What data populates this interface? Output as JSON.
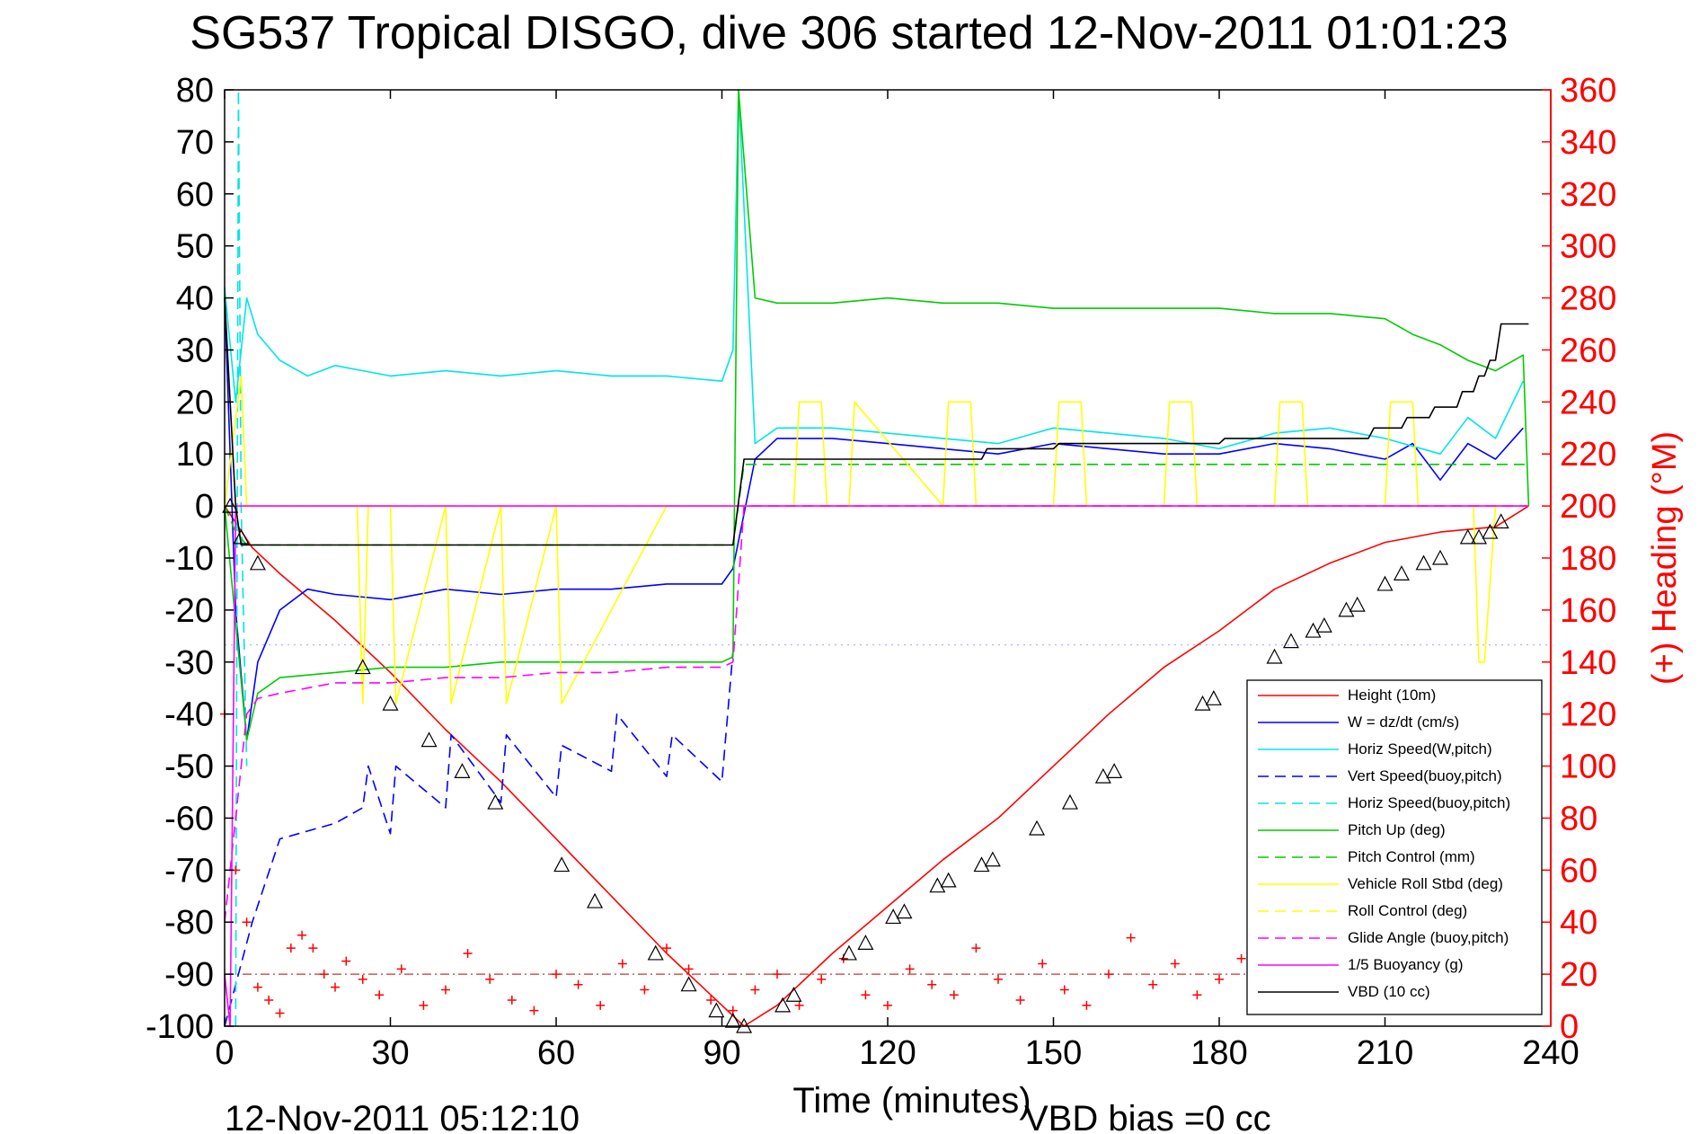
{
  "chart_data": {
    "type": "line",
    "title": "SG537 Tropical DISGO, dive 306 started 12-Nov-2011 01:01:23",
    "xlabel": "Time (minutes)",
    "ylabel": "",
    "ylabel_right": "(+) Heading (°M)",
    "footer_left": "12-Nov-2011 05:12:10",
    "footer_right": "VBD bias =0 cc",
    "xlim": [
      0,
      240
    ],
    "ylim": [
      -100,
      80
    ],
    "ylim_right": [
      0,
      360
    ],
    "xticks": [
      "0",
      "30",
      "60",
      "90",
      "120",
      "150",
      "180",
      "210",
      "240"
    ],
    "yticks": [
      "80",
      "70",
      "60",
      "50",
      "40",
      "30",
      "20",
      "10",
      "0",
      "-10",
      "-20",
      "-30",
      "-40",
      "-50",
      "-60",
      "-70",
      "-80",
      "-90",
      "-100"
    ],
    "yticks_right": [
      "360",
      "340",
      "320",
      "300",
      "280",
      "260",
      "240",
      "220",
      "200",
      "180",
      "160",
      "140",
      "120",
      "100",
      "80",
      "60",
      "40",
      "20",
      "0"
    ],
    "ref_lines": [
      {
        "y": -26.7,
        "color": "#aaaaff",
        "style": "dotted"
      },
      {
        "y": -90,
        "color": "#cc3333",
        "style": "dashdot"
      }
    ],
    "legend_position": "lower-right",
    "series": [
      {
        "name": "Height (10m)",
        "color": "#ff0000",
        "style": "solid",
        "x": [
          0,
          5,
          10,
          20,
          30,
          40,
          50,
          60,
          70,
          80,
          90,
          94,
          100,
          110,
          120,
          130,
          140,
          150,
          160,
          170,
          180,
          190,
          200,
          210,
          220,
          230,
          236
        ],
        "y": [
          0,
          -8,
          -13,
          -22,
          -32,
          -43,
          -53,
          -64,
          -75,
          -86,
          -96,
          -100,
          -96,
          -86,
          -77,
          -68,
          -60,
          -50,
          -40,
          -31,
          -24,
          -16,
          -11,
          -7,
          -5,
          -4,
          0
        ]
      },
      {
        "name": "W = dz/dt (cm/s)",
        "color": "#0000ff",
        "style": "solid",
        "x": [
          0,
          2,
          4,
          6,
          10,
          15,
          20,
          30,
          40,
          50,
          60,
          70,
          80,
          90,
          92,
          96,
          100,
          110,
          120,
          130,
          140,
          150,
          160,
          170,
          180,
          190,
          200,
          210,
          215,
          220,
          225,
          230,
          235
        ],
        "y": [
          40,
          -20,
          -45,
          -30,
          -20,
          -16,
          -17,
          -18,
          -16,
          -17,
          -16,
          -16,
          -15,
          -15,
          -12,
          9,
          13,
          13,
          12,
          11,
          10,
          12,
          11,
          10,
          10,
          12,
          11,
          9,
          12,
          5,
          12,
          9,
          15
        ]
      },
      {
        "name": "Horiz Speed(W,pitch)",
        "color": "#00e5e5",
        "style": "solid",
        "x": [
          0,
          2,
          4,
          6,
          10,
          15,
          20,
          30,
          40,
          50,
          60,
          70,
          80,
          90,
          92,
          93,
          96,
          100,
          110,
          120,
          130,
          140,
          150,
          160,
          170,
          180,
          190,
          200,
          210,
          220,
          225,
          230,
          235
        ],
        "y": [
          42,
          20,
          40,
          33,
          28,
          25,
          27,
          25,
          26,
          25,
          26,
          25,
          25,
          24,
          30,
          80,
          12,
          15,
          15,
          14,
          13,
          12,
          15,
          14,
          13,
          11,
          14,
          15,
          13,
          10,
          17,
          13,
          24
        ]
      },
      {
        "name": "Vert Speed(buoy,pitch)",
        "color": "#0000ff",
        "style": "dashed",
        "x": [
          0,
          5,
          10,
          20,
          25,
          26,
          30,
          31,
          40,
          41,
          50,
          51,
          60,
          61,
          70,
          71,
          80,
          81,
          90,
          92
        ],
        "y": [
          -100,
          -80,
          -64,
          -61,
          -58,
          -50,
          -63,
          -50,
          -58,
          -44,
          -57,
          -44,
          -56,
          -46,
          -51,
          -40,
          -52,
          -44,
          -53,
          -28
        ]
      },
      {
        "name": "Horiz Speed(buoy,pitch)",
        "color": "#00e5e5",
        "style": "dashed",
        "x": [
          2,
          2.5,
          3,
          4
        ],
        "y": [
          -100,
          80,
          0,
          -50
        ]
      },
      {
        "name": "Pitch Up (deg)",
        "color": "#00cc00",
        "style": "solid",
        "x": [
          0,
          4,
          6,
          10,
          20,
          30,
          40,
          50,
          60,
          70,
          80,
          90,
          92,
          93,
          96,
          100,
          110,
          120,
          130,
          140,
          150,
          160,
          170,
          180,
          190,
          200,
          210,
          215,
          220,
          225,
          230,
          235,
          236
        ],
        "y": [
          0,
          -45,
          -36,
          -33,
          -32,
          -31,
          -31,
          -30,
          -30,
          -30,
          -30,
          -30,
          -29,
          80,
          40,
          39,
          39,
          40,
          39,
          39,
          38,
          38,
          38,
          38,
          37,
          37,
          36,
          33,
          31,
          28,
          26,
          29,
          0
        ]
      },
      {
        "name": "Pitch Control (mm)",
        "color": "#00cc00",
        "style": "dashed",
        "x": [
          0,
          2,
          4,
          92,
          94,
          236
        ],
        "y": [
          0,
          -5,
          -7.5,
          -7.5,
          8,
          8
        ]
      },
      {
        "name": "Vehicle Roll Stbd (deg)",
        "color": "#ffff00",
        "style": "solid",
        "x": [
          0,
          3,
          4,
          6,
          10,
          20,
          24,
          25,
          26,
          30,
          31,
          40,
          41,
          50,
          51,
          60,
          61,
          80,
          90,
          92,
          96,
          100,
          103,
          104,
          108,
          109,
          113,
          114,
          130,
          131,
          135,
          136,
          150,
          151,
          155,
          156,
          170,
          171,
          175,
          176,
          190,
          191,
          195,
          196,
          210,
          211,
          215,
          216,
          226,
          227,
          228,
          230,
          236
        ],
        "y": [
          0,
          25,
          0,
          0,
          0,
          0,
          0,
          -38,
          0,
          0,
          -38,
          0,
          -38,
          0,
          -38,
          0,
          -38,
          0,
          0,
          0,
          0,
          0,
          0,
          20,
          20,
          0,
          0,
          20,
          0,
          20,
          20,
          0,
          0,
          20,
          20,
          0,
          0,
          20,
          20,
          0,
          0,
          20,
          20,
          0,
          0,
          20,
          20,
          0,
          0,
          -30,
          -30,
          0,
          0
        ]
      },
      {
        "name": "Roll Control (deg)",
        "color": "#ffff00",
        "style": "dashed",
        "x": [
          0,
          10,
          92,
          94,
          236
        ],
        "y": [
          0,
          0,
          0,
          0,
          0
        ]
      },
      {
        "name": "Glide Angle (buoy,pitch)",
        "color": "#ff00ff",
        "style": "dashed",
        "x": [
          0,
          4,
          6,
          10,
          20,
          30,
          40,
          50,
          60,
          70,
          80,
          90,
          92,
          94,
          236
        ],
        "y": [
          -80,
          -40,
          -37,
          -36,
          -34,
          -34,
          -33,
          -33,
          -32,
          -32,
          -31,
          -31,
          -30,
          0,
          0
        ]
      },
      {
        "name": "1/5 Buoyancy (g)",
        "color": "#ff00ff",
        "style": "solid",
        "x": [
          0,
          1,
          2,
          94,
          236
        ],
        "y": [
          -90,
          -100,
          0,
          0,
          0
        ]
      },
      {
        "name": "VBD (10 cc)",
        "color": "#000000",
        "style": "solid",
        "x": [
          0,
          2,
          3,
          92,
          94,
          137,
          138,
          150,
          151,
          180,
          181,
          207,
          208,
          213,
          214,
          218,
          219,
          223,
          224,
          226,
          227,
          228,
          229,
          230,
          231,
          236
        ],
        "y": [
          40,
          0,
          -7.5,
          -7.5,
          9,
          9,
          11,
          11,
          12,
          12,
          13,
          13,
          15,
          15,
          17,
          17,
          19,
          19,
          22,
          22,
          25,
          25,
          28,
          28,
          35,
          35
        ]
      },
      {
        "name": "(+) Heading",
        "color": "#ff0000",
        "style": "markers",
        "axis": "right",
        "x": [
          0,
          2,
          4,
          6,
          8,
          10,
          12,
          14,
          16,
          18,
          20,
          22,
          25,
          28,
          32,
          36,
          40,
          44,
          48,
          52,
          56,
          60,
          64,
          68,
          72,
          76,
          80,
          84,
          88,
          92,
          96,
          100,
          104,
          108,
          112,
          116,
          120,
          124,
          128,
          132,
          136,
          140,
          144,
          148,
          152,
          156,
          160,
          164,
          168,
          172,
          176,
          180,
          184,
          188,
          192,
          196,
          200,
          204,
          208,
          212,
          216,
          220,
          224,
          228,
          232,
          236
        ],
        "y": [
          120,
          60,
          40,
          15,
          10,
          5,
          30,
          35,
          30,
          20,
          15,
          25,
          18,
          12,
          22,
          8,
          14,
          28,
          18,
          10,
          6,
          20,
          16,
          8,
          24,
          14,
          30,
          22,
          10,
          6,
          14,
          20,
          8,
          18,
          26,
          12,
          8,
          22,
          16,
          12,
          30,
          18,
          10,
          24,
          14,
          8,
          20,
          34,
          16,
          24,
          12,
          18,
          26,
          14,
          10,
          22,
          16,
          28,
          12,
          20,
          16,
          10,
          24,
          18,
          14,
          22
        ]
      }
    ],
    "legend": [
      {
        "label": "Height (10m)",
        "color": "#ff0000",
        "style": "solid"
      },
      {
        "label": "W = dz/dt (cm/s)",
        "color": "#0000ff",
        "style": "solid"
      },
      {
        "label": "Horiz Speed(W,pitch)",
        "color": "#00e5e5",
        "style": "solid"
      },
      {
        "label": "Vert Speed(buoy,pitch)",
        "color": "#0000ff",
        "style": "dashed"
      },
      {
        "label": "Horiz Speed(buoy,pitch)",
        "color": "#00e5e5",
        "style": "dashed"
      },
      {
        "label": "Pitch Up (deg)",
        "color": "#00cc00",
        "style": "solid"
      },
      {
        "label": "Pitch Control (mm)",
        "color": "#00cc00",
        "style": "dashed"
      },
      {
        "label": "Vehicle Roll Stbd (deg)",
        "color": "#ffff00",
        "style": "solid"
      },
      {
        "label": "Roll Control (deg)",
        "color": "#ffff00",
        "style": "dashed"
      },
      {
        "label": "Glide Angle (buoy,pitch)",
        "color": "#ff00ff",
        "style": "dashed"
      },
      {
        "label": "1/5 Buoyancy (g)",
        "color": "#ff00ff",
        "style": "solid"
      },
      {
        "label": "VBD (10 cc)",
        "color": "#000000",
        "style": "solid"
      }
    ],
    "triangle_markers": {
      "color": "#000000",
      "x": [
        1,
        3,
        6,
        25,
        30,
        37,
        43,
        49,
        61,
        67,
        78,
        84,
        89,
        92,
        94,
        101,
        103,
        113,
        116,
        121,
        123,
        129,
        131,
        137,
        139,
        147,
        153,
        159,
        161,
        177,
        179,
        190,
        193,
        197,
        199,
        203,
        205,
        210,
        213,
        217,
        220,
        225,
        227,
        229,
        231
      ],
      "y": [
        0,
        -6,
        -11,
        -31,
        -38,
        -45,
        -51,
        -57,
        -69,
        -76,
        -86,
        -92,
        -97,
        -99,
        -100,
        -96,
        -94,
        -86,
        -84,
        -79,
        -78,
        -73,
        -72,
        -69,
        -68,
        -62,
        -57,
        -52,
        -51,
        -38,
        -37,
        -29,
        -26,
        -24,
        -23,
        -20,
        -19,
        -15,
        -13,
        -11,
        -10,
        -6,
        -6,
        -5,
        -3
      ]
    }
  }
}
